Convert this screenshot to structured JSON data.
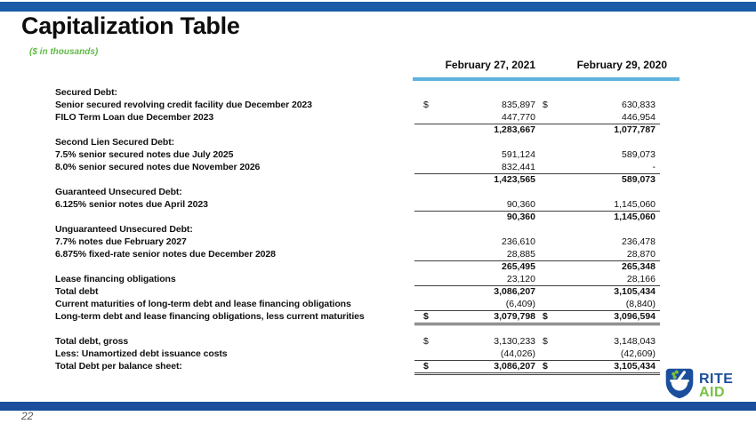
{
  "slide": {
    "title": "Capitalization Table",
    "subtitle": "($ in thousands)",
    "page_number": "22"
  },
  "colors": {
    "top_bar": "#1A5CA8",
    "bottom_bar": "#1B4F9C",
    "header_underline": "#5EB3DF",
    "subtitle_green": "#5FBB46",
    "logo_blue": "#1B4F9C",
    "logo_green": "#7AC143"
  },
  "logo": {
    "line1": "RITE",
    "line2": "AID"
  },
  "table": {
    "col_headers": [
      "February 27, 2021",
      "February 29, 2020"
    ],
    "rows": [
      {
        "label": "Secured Debt:",
        "d1": "",
        "v1": "",
        "d2": "",
        "v2": "",
        "bold": false,
        "rule": ""
      },
      {
        "label": "Senior secured revolving credit facility due December 2023",
        "d1": "$",
        "v1": "835,897",
        "d2": "$",
        "v2": "630,833",
        "bold": false,
        "rule": ""
      },
      {
        "label": "FILO Term Loan due December 2023",
        "d1": "",
        "v1": "447,770",
        "d2": "",
        "v2": "446,954",
        "bold": false,
        "rule": "single"
      },
      {
        "label": "",
        "d1": "",
        "v1": "1,283,667",
        "d2": "",
        "v2": "1,077,787",
        "bold": true,
        "rule": ""
      },
      {
        "label": "Second Lien Secured Debt:",
        "d1": "",
        "v1": "",
        "d2": "",
        "v2": "",
        "bold": false,
        "rule": ""
      },
      {
        "label": "7.5% senior secured notes due July 2025",
        "d1": "",
        "v1": "591,124",
        "d2": "",
        "v2": "589,073",
        "bold": false,
        "rule": ""
      },
      {
        "label": "8.0% senior secured notes due November 2026",
        "d1": "",
        "v1": "832,441",
        "d2": "",
        "v2": "-",
        "bold": false,
        "rule": "single"
      },
      {
        "label": "",
        "d1": "",
        "v1": "1,423,565",
        "d2": "",
        "v2": "589,073",
        "bold": true,
        "rule": ""
      },
      {
        "label": "Guaranteed Unsecured Debt:",
        "d1": "",
        "v1": "",
        "d2": "",
        "v2": "",
        "bold": false,
        "rule": ""
      },
      {
        "label": "6.125% senior notes due April 2023",
        "d1": "",
        "v1": "90,360",
        "d2": "",
        "v2": "1,145,060",
        "bold": false,
        "rule": "single"
      },
      {
        "label": "",
        "d1": "",
        "v1": "90,360",
        "d2": "",
        "v2": "1,145,060",
        "bold": true,
        "rule": ""
      },
      {
        "label": "Unguaranteed Unsecured Debt:",
        "d1": "",
        "v1": "",
        "d2": "",
        "v2": "",
        "bold": false,
        "rule": ""
      },
      {
        "label": "7.7% notes due February 2027",
        "d1": "",
        "v1": "236,610",
        "d2": "",
        "v2": "236,478",
        "bold": false,
        "rule": ""
      },
      {
        "label": "6.875% fixed-rate senior notes due December 2028",
        "d1": "",
        "v1": "28,885",
        "d2": "",
        "v2": "28,870",
        "bold": false,
        "rule": "single"
      },
      {
        "label": "",
        "d1": "",
        "v1": "265,495",
        "d2": "",
        "v2": "265,348",
        "bold": true,
        "rule": ""
      },
      {
        "label": "Lease financing obligations",
        "d1": "",
        "v1": "23,120",
        "d2": "",
        "v2": "28,166",
        "bold": false,
        "rule": "single"
      },
      {
        "label": "Total debt",
        "d1": "",
        "v1": "3,086,207",
        "d2": "",
        "v2": "3,105,434",
        "bold": true,
        "rule": ""
      },
      {
        "label": "Current maturities of long-term debt and lease financing obligations",
        "d1": "",
        "v1": "(6,409)",
        "d2": "",
        "v2": "(8,840)",
        "bold": false,
        "rule": "single"
      },
      {
        "label": "Long-term debt and lease financing obligations, less current maturities",
        "d1": "$",
        "v1": "3,079,798",
        "d2": "$",
        "v2": "3,096,594",
        "bold": true,
        "rule": "double"
      },
      {
        "blank": true
      },
      {
        "label": "Total debt, gross",
        "d1": "$",
        "v1": "3,130,233",
        "d2": "$",
        "v2": "3,148,043",
        "bold": false,
        "rule": ""
      },
      {
        "label": "Less: Unamortized debt issuance costs",
        "d1": "",
        "v1": "(44,026)",
        "d2": "",
        "v2": "(42,609)",
        "bold": false,
        "rule": "single"
      },
      {
        "label": "Total Debt per balance sheet:",
        "d1": "$",
        "v1": "3,086,207",
        "d2": "$",
        "v2": "3,105,434",
        "bold": true,
        "rule": "double"
      }
    ]
  }
}
